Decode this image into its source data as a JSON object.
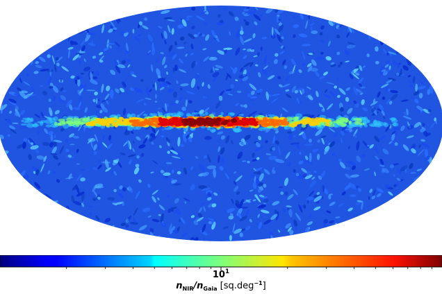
{
  "chart_data": {
    "type": "heatmap",
    "projection": "Mollweide all-sky",
    "title": "",
    "colorbar": {
      "scale": "log",
      "colormap": "jet",
      "tick_label_base": "10",
      "tick_label_exp": "1",
      "tick_value": 10,
      "range": [
        1,
        100
      ],
      "label_num": "n",
      "label_num_sub": "NIR",
      "label_den": "n",
      "label_den_sub": "Gaia",
      "label_units_pre": "[sq.deg",
      "label_units_exp": "−1",
      "label_units_post": "]"
    },
    "features": [
      "Galactic plane band with highest values (red) near longitude 0",
      "Mottled background of low values (blue) across high latitudes"
    ]
  }
}
